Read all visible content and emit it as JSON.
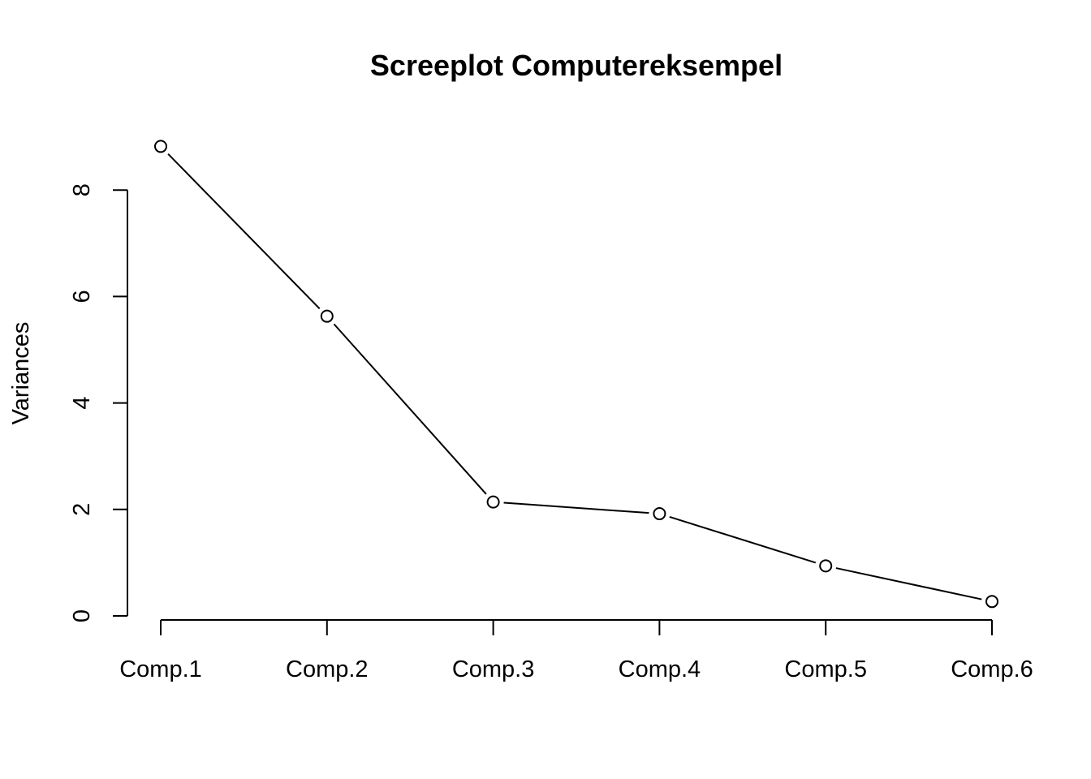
{
  "chart_data": {
    "type": "line",
    "title": "Screeplot Computereksempel",
    "xlabel": "",
    "ylabel": "Variances",
    "categories": [
      "Comp.1",
      "Comp.2",
      "Comp.3",
      "Comp.4",
      "Comp.5",
      "Comp.6"
    ],
    "values": [
      8.82,
      5.63,
      2.14,
      1.92,
      0.94,
      0.27
    ],
    "ylim": [
      0,
      8
    ],
    "yticks": [
      "0",
      "2",
      "4",
      "6",
      "8"
    ],
    "grid": false,
    "legend": "none",
    "marker": "open-circle",
    "line_color": "#000000"
  }
}
